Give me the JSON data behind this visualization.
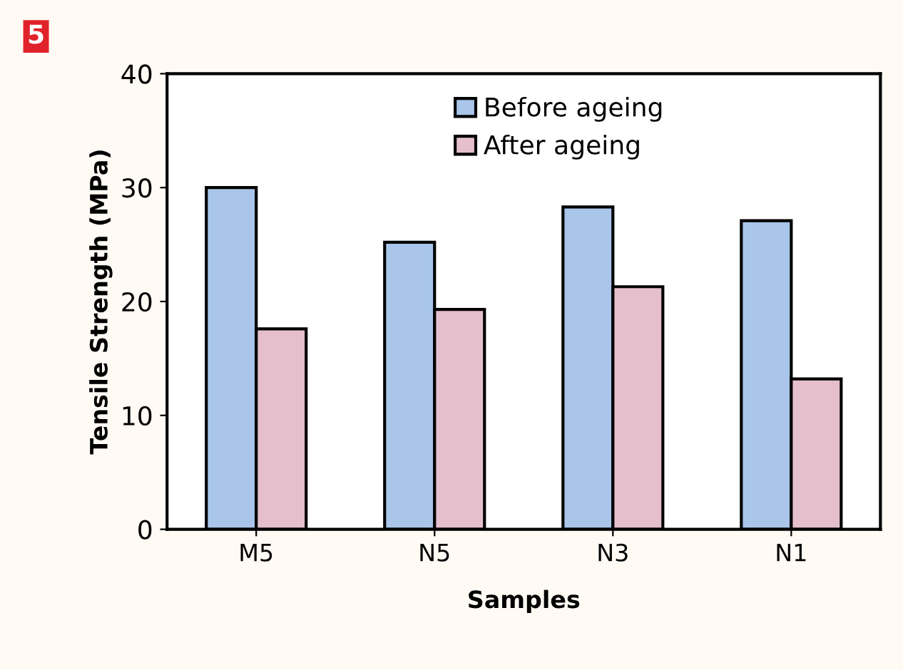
{
  "chart_data": {
    "type": "bar",
    "xlabel": "Samples",
    "ylabel": "Tensile Strength (MPa)",
    "categories": [
      "M5",
      "N5",
      "N3",
      "N1"
    ],
    "series": [
      {
        "name": "Before ageing",
        "color": "#a9c6ea",
        "values": [
          30.0,
          25.2,
          28.3,
          27.1
        ]
      },
      {
        "name": "After ageing",
        "color": "#e6bfcc",
        "values": [
          17.6,
          19.3,
          21.3,
          13.2
        ]
      }
    ],
    "ylim": [
      0,
      40
    ],
    "yticks": [
      0,
      10,
      20,
      30,
      40
    ],
    "grid": false,
    "legend": "top",
    "annotations": [
      "5"
    ]
  }
}
